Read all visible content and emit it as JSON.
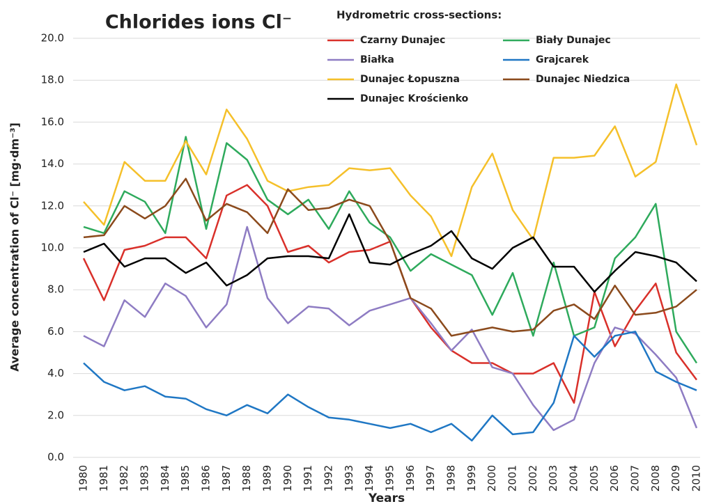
{
  "chart_data": {
    "type": "line",
    "title": "Chlorides ions Cl⁻",
    "legend_title": "Hydrometric cross-sections:",
    "x_label": "Years",
    "y_label": "Average concentration of Cl⁻ [mg·dm⁻³]",
    "categories": [
      "1980",
      "1981",
      "1982",
      "1983",
      "1984",
      "1985",
      "1986",
      "1987",
      "1988",
      "1989",
      "1990",
      "1991",
      "1992",
      "1993",
      "1994",
      "1995",
      "1996",
      "1997",
      "1998",
      "1999",
      "2000",
      "2001",
      "2002",
      "2003",
      "2004",
      "2005",
      "2006",
      "2007",
      "2008",
      "2009",
      "2010"
    ],
    "ylim": [
      0,
      20
    ],
    "yticks": [
      {
        "value": 0,
        "label": "0.0"
      },
      {
        "value": 2,
        "label": "2.0"
      },
      {
        "value": 4,
        "label": "4.0"
      },
      {
        "value": 6,
        "label": "6.0"
      },
      {
        "value": 8,
        "label": "8.0"
      },
      {
        "value": 10,
        "label": "10.0"
      },
      {
        "value": 12,
        "label": "12.0"
      },
      {
        "value": 14,
        "label": "14.0"
      },
      {
        "value": 16,
        "label": "16.0"
      },
      {
        "value": 18,
        "label": "18.0"
      },
      {
        "value": 20,
        "label": "20.0"
      }
    ],
    "grid": true,
    "series": [
      {
        "name": "Czarny Dunajec",
        "color": "#d9302a",
        "values": [
          9.5,
          7.5,
          9.9,
          10.1,
          10.5,
          10.5,
          9.5,
          12.5,
          13.0,
          12.0,
          9.8,
          10.1,
          9.3,
          9.8,
          9.9,
          10.3,
          7.6,
          6.2,
          5.1,
          4.5,
          4.5,
          4.0,
          4.0,
          4.5,
          2.6,
          7.9,
          5.3,
          7.0,
          8.3,
          5.0,
          3.7
        ]
      },
      {
        "name": "Biały Dunajec",
        "color": "#2eaa5c",
        "values": [
          11.0,
          10.7,
          12.7,
          12.2,
          10.7,
          15.3,
          10.9,
          15.0,
          14.2,
          12.3,
          11.6,
          12.3,
          10.9,
          12.7,
          11.2,
          10.5,
          8.9,
          9.7,
          9.2,
          8.7,
          6.8,
          8.8,
          5.8,
          9.3,
          5.8,
          6.2,
          9.5,
          10.5,
          12.1,
          6.0,
          4.5
        ]
      },
      {
        "name": "Białka",
        "color": "#8e7cc3",
        "values": [
          5.8,
          5.3,
          7.5,
          6.7,
          8.3,
          7.7,
          6.2,
          7.3,
          11.0,
          7.6,
          6.4,
          7.2,
          7.1,
          6.3,
          7.0,
          7.3,
          7.6,
          6.4,
          5.1,
          6.1,
          4.3,
          4.0,
          2.5,
          1.3,
          1.8,
          4.5,
          6.2,
          5.9,
          4.9,
          3.8,
          1.4
        ]
      },
      {
        "name": "Grajcarek",
        "color": "#1f77c4",
        "values": [
          4.5,
          3.6,
          3.2,
          3.4,
          2.9,
          2.8,
          2.3,
          2.0,
          2.5,
          2.1,
          3.0,
          2.4,
          1.9,
          1.8,
          1.6,
          1.4,
          1.6,
          1.2,
          1.6,
          0.8,
          2.0,
          1.1,
          1.2,
          2.6,
          5.8,
          4.8,
          5.8,
          6.0,
          4.1,
          3.6,
          3.2
        ]
      },
      {
        "name": "Dunajec Łopuszna",
        "color": "#f5c02a",
        "values": [
          12.2,
          11.1,
          14.1,
          13.2,
          13.2,
          15.1,
          13.5,
          16.6,
          15.2,
          13.2,
          12.7,
          12.9,
          13.0,
          13.8,
          13.7,
          13.8,
          12.5,
          11.5,
          9.6,
          12.9,
          14.5,
          11.8,
          10.4,
          14.3,
          14.3,
          14.4,
          15.8,
          13.4,
          14.1,
          17.8,
          14.9
        ]
      },
      {
        "name": "Dunajec Niedzica",
        "color": "#8b4a1c",
        "values": [
          10.5,
          10.6,
          12.0,
          11.4,
          12.0,
          13.3,
          11.3,
          12.1,
          11.7,
          10.7,
          12.8,
          11.8,
          11.9,
          12.3,
          12.0,
          10.3,
          7.6,
          7.1,
          5.8,
          6.0,
          6.2,
          6.0,
          6.1,
          7.0,
          7.3,
          6.6,
          8.2,
          6.8,
          6.9,
          7.2,
          8.0
        ]
      },
      {
        "name": "Dunajec Krościenko",
        "color": "#000000",
        "values": [
          9.8,
          10.2,
          9.1,
          9.5,
          9.5,
          8.8,
          9.3,
          8.2,
          8.7,
          9.5,
          9.6,
          9.6,
          9.5,
          11.6,
          9.3,
          9.2,
          9.7,
          10.1,
          10.8,
          9.5,
          9.0,
          10.0,
          10.5,
          9.1,
          9.1,
          7.9,
          8.9,
          9.8,
          9.6,
          9.3,
          8.4
        ]
      }
    ]
  }
}
